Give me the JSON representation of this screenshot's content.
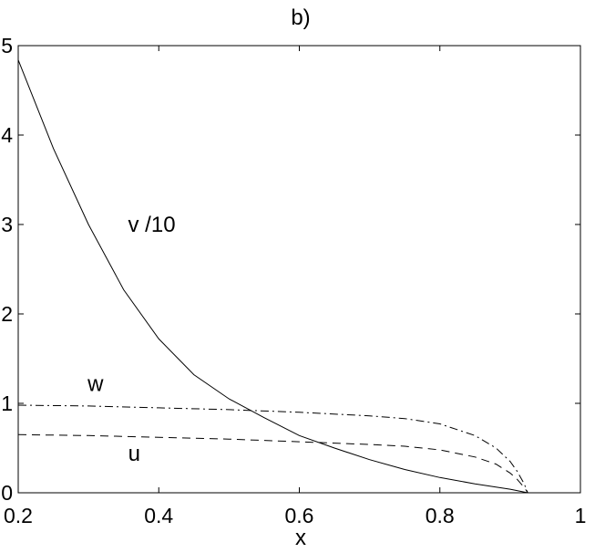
{
  "chart_data": {
    "type": "line",
    "title": "b)",
    "xlabel": "x",
    "ylabel": "",
    "xlim": [
      0.2,
      1
    ],
    "ylim": [
      0,
      5
    ],
    "grid": false,
    "legend": "none",
    "x_ticks": [
      "0.2",
      "0.4",
      "0.6",
      "0.8",
      "1"
    ],
    "y_ticks": [
      "0",
      "1",
      "2",
      "3",
      "4",
      "5"
    ],
    "series": [
      {
        "name": "v /10",
        "line_style": "solid",
        "color": "#000000",
        "x": [
          0.2,
          0.25,
          0.3,
          0.35,
          0.4,
          0.45,
          0.5,
          0.55,
          0.6,
          0.65,
          0.7,
          0.75,
          0.8,
          0.85,
          0.9,
          0.925
        ],
        "y": [
          4.84,
          3.85,
          3.0,
          2.27,
          1.72,
          1.32,
          1.05,
          0.84,
          0.64,
          0.5,
          0.37,
          0.26,
          0.17,
          0.1,
          0.04,
          0.0
        ]
      },
      {
        "name": "w",
        "line_style": "dash-dot",
        "color": "#000000",
        "x": [
          0.2,
          0.3,
          0.4,
          0.5,
          0.6,
          0.7,
          0.75,
          0.8,
          0.85,
          0.88,
          0.9,
          0.91,
          0.92,
          0.925
        ],
        "y": [
          0.98,
          0.97,
          0.95,
          0.93,
          0.9,
          0.86,
          0.83,
          0.77,
          0.64,
          0.5,
          0.35,
          0.24,
          0.1,
          0.0
        ]
      },
      {
        "name": "u",
        "line_style": "dashed",
        "color": "#000000",
        "x": [
          0.2,
          0.3,
          0.4,
          0.5,
          0.6,
          0.7,
          0.75,
          0.8,
          0.85,
          0.88,
          0.9,
          0.91,
          0.92,
          0.925
        ],
        "y": [
          0.65,
          0.64,
          0.62,
          0.6,
          0.57,
          0.54,
          0.52,
          0.48,
          0.4,
          0.32,
          0.22,
          0.15,
          0.06,
          0.0
        ]
      }
    ],
    "annotations": [
      {
        "text": "v /10",
        "x": 0.39,
        "y": 3.0
      },
      {
        "text": "w",
        "x": 0.31,
        "y": 1.22
      },
      {
        "text": "u",
        "x": 0.365,
        "y": 0.44
      }
    ]
  }
}
